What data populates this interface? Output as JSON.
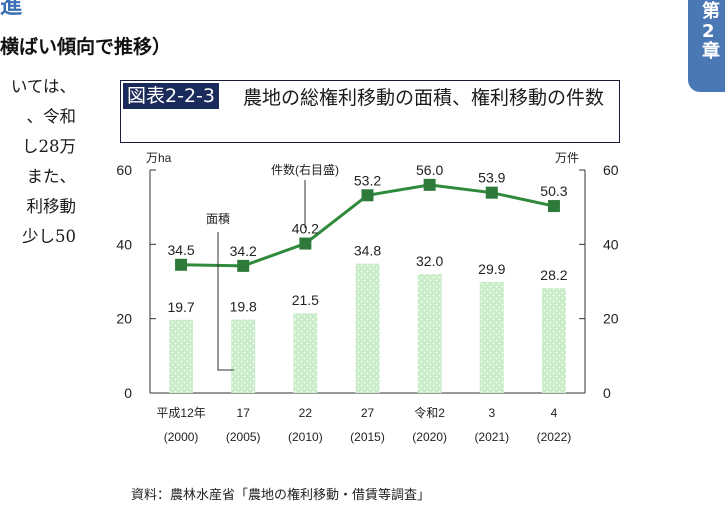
{
  "page": {
    "heading_top": "進",
    "subheading": "横ばい傾向で推移）",
    "body_lines": [
      "いては、",
      "、令和",
      "し28万",
      "また、",
      "利移動",
      "少し50"
    ],
    "chapter_tab": [
      "第",
      "2",
      "章"
    ],
    "figure_number": "図表2-2-3",
    "figure_title": "農地の総権利移動の面積、権利移動の件数",
    "source": "資料：農林水産省「農地の権利移動・借賃等調査」"
  },
  "chart_data": {
    "type": "bar",
    "categories": [
      "平成12年",
      "17",
      "22",
      "27",
      "令和2",
      "3",
      "4"
    ],
    "categories_sub": [
      "(2000)",
      "(2005)",
      "(2010)",
      "(2015)",
      "(2020)",
      "(2021)",
      "(2022)"
    ],
    "series": [
      {
        "name": "面積",
        "type": "bar",
        "axis": "left",
        "values": [
          19.7,
          19.8,
          21.5,
          34.8,
          32.0,
          29.9,
          28.2
        ]
      },
      {
        "name": "件数(右目盛)",
        "type": "line",
        "axis": "right",
        "values": [
          34.5,
          34.2,
          40.2,
          53.2,
          56.0,
          53.9,
          50.3
        ]
      }
    ],
    "ylabel": "万ha",
    "y2label": "万件",
    "ylim": [
      0,
      60
    ],
    "y2lim": [
      0,
      60
    ],
    "yticks": [
      0,
      20,
      40,
      60
    ],
    "colors": {
      "bar": "#c9ecc9",
      "bar_dots": "#ffffff",
      "line": "#2f8a3c",
      "marker": "#2e7a3a"
    },
    "grid": false,
    "legend": "inline-labels"
  }
}
